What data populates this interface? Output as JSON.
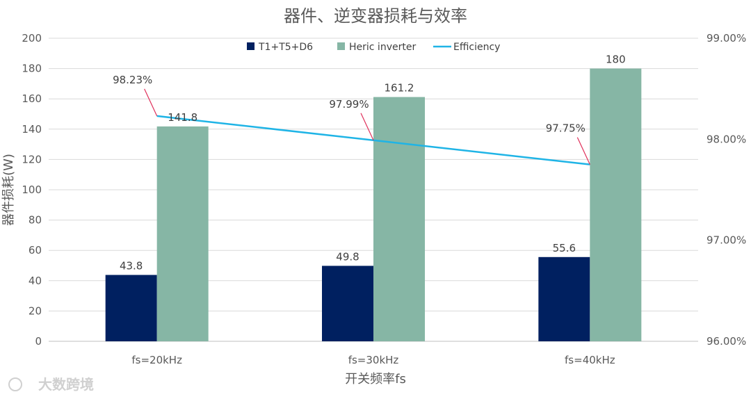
{
  "chart_data": {
    "type": "bar",
    "title": "器件、逆变器损耗与效率",
    "xlabel": "开关频率fs",
    "ylabel": "器件损耗(W)",
    "categories": [
      "fs=20kHz",
      "fs=30kHz",
      "fs=40kHz"
    ],
    "series": [
      {
        "name": "T1+T5+D6",
        "type": "bar",
        "axis": "left",
        "values": [
          43.8,
          49.8,
          55.6
        ],
        "color": "#002060"
      },
      {
        "name": "Heric inverter",
        "type": "bar",
        "axis": "left",
        "values": [
          141.8,
          161.2,
          180
        ],
        "color": "#86B6A5"
      },
      {
        "name": "Efficiency",
        "type": "line",
        "axis": "right",
        "values": [
          98.23,
          97.99,
          97.75
        ],
        "labels": [
          "98.23%",
          "97.99%",
          "97.75%"
        ],
        "color": "#1FB4E6"
      }
    ],
    "ylim": [
      0,
      200
    ],
    "yticks": [
      "0",
      "20",
      "40",
      "60",
      "80",
      "100",
      "120",
      "140",
      "160",
      "180",
      "200"
    ],
    "y2lim": [
      96,
      99
    ],
    "y2ticks": [
      "96.00%",
      "97.00%",
      "98.00%",
      "99.00%"
    ],
    "grid": true,
    "legend_position": "top-center",
    "annotation_color": "#E0305A"
  },
  "watermark": {
    "text": "大数跨境"
  }
}
